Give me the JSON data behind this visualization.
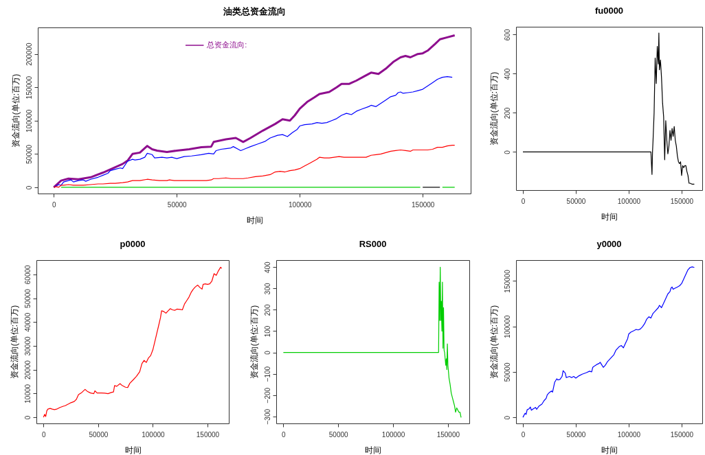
{
  "chart_data": [
    {
      "type": "line",
      "title": "油类总资金流向",
      "xlabel": "时间",
      "ylabel": "资金流向(单位:百万)",
      "xlim": [
        -6500,
        169500
      ],
      "ylim": [
        -9400,
        239800
      ],
      "xticks": [
        0,
        50000,
        100000,
        150000
      ],
      "yticks": [
        0,
        50000,
        100000,
        150000,
        200000
      ],
      "legend": "top",
      "series": [
        {
          "name": "总资金流向:",
          "color": "#8e0e8e",
          "x": [
            0,
            3000,
            6000,
            10000,
            15000,
            20000,
            25000,
            28000,
            30000,
            32000,
            35000,
            38000,
            40000,
            42000,
            46000,
            50000,
            55000,
            60000,
            64000,
            65000,
            70000,
            74000,
            77000,
            80000,
            85000,
            90000,
            93000,
            96000,
            98000,
            100000,
            103000,
            106000,
            108000,
            112000,
            115000,
            117000,
            120000,
            123000,
            126000,
            129000,
            132000,
            135000,
            138000,
            141000,
            143000,
            145000,
            148000,
            150000,
            152000,
            155000,
            157000,
            160000,
            163000
          ],
          "values": [
            0,
            10000,
            13000,
            12000,
            15000,
            22000,
            30000,
            35000,
            40000,
            50000,
            52000,
            62000,
            57000,
            55000,
            53000,
            55000,
            57000,
            60000,
            61000,
            68000,
            72000,
            74000,
            68000,
            74000,
            85000,
            95000,
            102000,
            100000,
            108000,
            118000,
            128000,
            135000,
            140000,
            143000,
            150000,
            155000,
            155000,
            160000,
            166000,
            172000,
            170000,
            178000,
            188000,
            195000,
            197000,
            195000,
            200000,
            201000,
            205000,
            215000,
            222000,
            225000,
            228000
          ]
        },
        {
          "color": "#0000ff",
          "x": [
            0,
            2000,
            3000,
            4000,
            6000,
            7000,
            8000,
            10000,
            12000,
            13000,
            15000,
            18000,
            20000,
            22000,
            23000,
            25000,
            27000,
            28000,
            30000,
            32000,
            33000,
            35000,
            37000,
            38000,
            40000,
            41000,
            44000,
            46000,
            48000,
            50000,
            53000,
            56000,
            60000,
            63000,
            65000,
            66000,
            68000,
            70000,
            72000,
            73000,
            75000,
            76000,
            78000,
            80000,
            83000,
            86000,
            88000,
            91000,
            93000,
            95000,
            97000,
            99000,
            100000,
            102000,
            105000,
            107000,
            109000,
            111000,
            113000,
            115000,
            117000,
            119000,
            121000,
            123000,
            125000,
            128000,
            129000,
            131000,
            133000,
            135000,
            137000,
            139000,
            140000,
            141000,
            142000,
            144000,
            146000,
            148000,
            150000,
            152000,
            154000,
            156000,
            158000,
            160000,
            162000
          ],
          "values": [
            0,
            4000,
            3000,
            8000,
            10000,
            11000,
            8000,
            10000,
            11000,
            9000,
            12000,
            15000,
            18000,
            21000,
            25000,
            27000,
            29000,
            28000,
            39000,
            42000,
            41000,
            42000,
            45000,
            51000,
            49000,
            44000,
            45000,
            44000,
            45000,
            43000,
            46000,
            47000,
            49000,
            51000,
            50000,
            55000,
            57000,
            58000,
            59000,
            61000,
            57000,
            55000,
            58000,
            61000,
            65000,
            69000,
            74000,
            78000,
            79000,
            76000,
            82000,
            87000,
            92000,
            94000,
            95000,
            97000,
            96000,
            97000,
            100000,
            103000,
            108000,
            111000,
            109000,
            114000,
            117000,
            121000,
            123000,
            121000,
            126000,
            131000,
            136000,
            138000,
            142000,
            143000,
            141000,
            142000,
            143000,
            145000,
            147000,
            152000,
            157000,
            162000,
            165000,
            166000,
            165000
          ]
        },
        {
          "color": "#ff0000",
          "x": [
            0,
            1000,
            2000,
            3000,
            4000,
            6000,
            8000,
            10000,
            12000,
            15000,
            18000,
            20000,
            23000,
            25000,
            28000,
            30000,
            32000,
            35000,
            38000,
            40000,
            43000,
            46000,
            47000,
            49000,
            53000,
            56000,
            59000,
            62000,
            64000,
            65000,
            67000,
            70000,
            72000,
            75000,
            77000,
            79000,
            82000,
            85000,
            88000,
            90000,
            92000,
            94000,
            96000,
            98000,
            100000,
            102000,
            104000,
            105000,
            107000,
            108000,
            110000,
            112000,
            114000,
            116000,
            118000,
            120000,
            122000,
            125000,
            127000,
            129000,
            131000,
            133000,
            135000,
            137000,
            139000,
            141000,
            143000,
            145000,
            146000,
            148000,
            150000,
            152000,
            154000,
            156000,
            158000,
            160000,
            162000,
            163000
          ],
          "values": [
            0,
            1000,
            0,
            3000,
            3000,
            4000,
            3000,
            3000,
            3000,
            4000,
            5000,
            5000,
            6000,
            6000,
            7000,
            8000,
            10000,
            10000,
            12000,
            11000,
            10000,
            10000,
            11000,
            10000,
            10000,
            10000,
            10000,
            10000,
            11000,
            13000,
            13000,
            14000,
            13000,
            13000,
            13000,
            14000,
            16000,
            17000,
            19000,
            23000,
            24000,
            23000,
            25000,
            26000,
            28000,
            32000,
            36000,
            38000,
            42000,
            45000,
            44000,
            44000,
            45000,
            46000,
            45000,
            45000,
            45000,
            45000,
            45000,
            48000,
            49000,
            50000,
            52000,
            54000,
            55000,
            56000,
            55000,
            54000,
            56000,
            56000,
            56000,
            56000,
            57000,
            60000,
            60000,
            62000,
            63000,
            63000
          ]
        },
        {
          "color": "#000000",
          "x": [
            150000,
            157000
          ],
          "values": [
            0,
            0
          ]
        },
        {
          "color": "#00cd00",
          "x": [
            3000,
            141500,
            149000,
            153000,
            158000,
            163000
          ],
          "values": [
            0,
            0,
            0,
            null,
            0,
            0
          ]
        }
      ]
    },
    {
      "type": "line",
      "title": "fu0000",
      "xlabel": "时间",
      "ylabel": "资金流向(单位:百万)",
      "xlim": [
        -6500,
        169500
      ],
      "ylim": [
        -195,
        640
      ],
      "xticks": [
        0,
        50000,
        100000,
        150000
      ],
      "yticks": [
        0,
        200,
        400,
        600
      ],
      "series": [
        {
          "color": "#000000",
          "x": [
            0,
            121000,
            121500,
            122000,
            122500,
            123000,
            124000,
            125000,
            126000,
            127000,
            128000,
            128500,
            129000,
            130000,
            131000,
            132000,
            133000,
            134000,
            135000,
            136000,
            137000,
            138000,
            139000,
            140000,
            141000,
            142000,
            143000,
            144000,
            145000,
            146000,
            147000,
            148000,
            149000,
            150000,
            151000,
            152000,
            153000,
            154000,
            155000,
            156000,
            157000,
            158000,
            160000,
            162000
          ],
          "values": [
            0,
            0,
            -60,
            -115,
            0,
            60,
            200,
            480,
            350,
            540,
            450,
            608,
            420,
            470,
            380,
            250,
            180,
            -40,
            160,
            60,
            -10,
            30,
            110,
            60,
            120,
            80,
            130,
            60,
            30,
            -20,
            -50,
            -60,
            -50,
            -120,
            -70,
            -80,
            -70,
            -70,
            -100,
            -120,
            -160,
            -160,
            -165,
            -165
          ]
        }
      ]
    },
    {
      "type": "line",
      "title": "p0000",
      "xlabel": "时间",
      "ylabel": "资金流向(单位:百万)",
      "xlim": [
        -6500,
        169500
      ],
      "ylim": [
        -2600,
        66000
      ],
      "xticks": [
        0,
        50000,
        100000,
        150000
      ],
      "yticks": [
        0,
        10000,
        20000,
        30000,
        40000,
        50000,
        60000
      ],
      "series": [
        {
          "color": "#ff0000",
          "x": [
            0,
            1000,
            2000,
            3000,
            4000,
            6000,
            8000,
            10000,
            12000,
            15000,
            18000,
            20000,
            23000,
            25000,
            28000,
            30000,
            32000,
            35000,
            38000,
            40000,
            43000,
            46000,
            47000,
            49000,
            53000,
            56000,
            59000,
            62000,
            64000,
            65000,
            67000,
            70000,
            72000,
            75000,
            77000,
            79000,
            82000,
            85000,
            88000,
            90000,
            92000,
            94000,
            96000,
            98000,
            100000,
            102000,
            104000,
            105000,
            107000,
            108000,
            110000,
            112000,
            114000,
            116000,
            118000,
            120000,
            122000,
            125000,
            127000,
            129000,
            131000,
            133000,
            135000,
            137000,
            139000,
            141000,
            143000,
            145000,
            146000,
            148000,
            150000,
            152000,
            154000,
            156000,
            158000,
            160000,
            162000,
            163000
          ],
          "values": [
            0,
            1200,
            300,
            2700,
            3400,
            3700,
            3400,
            3200,
            3400,
            4100,
            4600,
            4900,
            5600,
            6100,
            6600,
            7500,
            9500,
            10400,
            11700,
            10900,
            10200,
            9900,
            11100,
            10200,
            10200,
            10100,
            9900,
            10400,
            10600,
            13300,
            13000,
            14100,
            13300,
            12600,
            12500,
            14300,
            15700,
            17200,
            19100,
            22500,
            23900,
            23000,
            24900,
            25900,
            28300,
            32100,
            36000,
            37900,
            41800,
            44700,
            44400,
            43700,
            44700,
            45600,
            45100,
            44900,
            45400,
            45300,
            45100,
            47600,
            49000,
            50400,
            52400,
            53800,
            54800,
            55500,
            54500,
            53800,
            55800,
            56000,
            55800,
            56000,
            57200,
            60300,
            59600,
            61500,
            63000,
            62500
          ]
        }
      ]
    },
    {
      "type": "line",
      "title": "RS000",
      "xlabel": "时间",
      "ylabel": "资金流向(单位:百万)",
      "xlim": [
        -6500,
        169500
      ],
      "ylim": [
        -333,
        433
      ],
      "xticks": [
        0,
        50000,
        100000,
        150000
      ],
      "yticks": [
        -300,
        -200,
        -100,
        0,
        100,
        200,
        300,
        400
      ],
      "series": [
        {
          "color": "#00cd00",
          "x": [
            0,
            141500,
            142000,
            142500,
            143000,
            143500,
            144000,
            144500,
            145000,
            145500,
            146000,
            146500,
            147000,
            148000,
            148500,
            149000,
            149500,
            150000,
            151000,
            152000,
            153000,
            154000,
            155000,
            156000,
            157000,
            158000,
            159000,
            160000,
            161000,
            162000
          ],
          "values": [
            0,
            0,
            330,
            150,
            400,
            150,
            240,
            100,
            330,
            20,
            210,
            10,
            0,
            -60,
            -30,
            -80,
            40,
            -60,
            -120,
            -150,
            -190,
            -210,
            -230,
            -250,
            -280,
            -260,
            -270,
            -280,
            -280,
            -305
          ]
        }
      ]
    },
    {
      "type": "line",
      "title": "y0000",
      "xlabel": "时间",
      "ylabel": "资金流向(单位:百万)",
      "xlim": [
        -6500,
        169500
      ],
      "ylim": [
        -6700,
        173000
      ],
      "xticks": [
        0,
        50000,
        100000,
        150000
      ],
      "yticks": [
        0,
        50000,
        100000,
        150000
      ],
      "series": [
        {
          "color": "#0000ff",
          "x": [
            0,
            2000,
            3000,
            4000,
            6000,
            7000,
            8000,
            10000,
            12000,
            13000,
            15000,
            18000,
            20000,
            22000,
            23000,
            25000,
            27000,
            28000,
            30000,
            32000,
            33000,
            35000,
            37000,
            38000,
            40000,
            41000,
            44000,
            46000,
            48000,
            50000,
            53000,
            56000,
            60000,
            63000,
            65000,
            66000,
            68000,
            70000,
            72000,
            73000,
            75000,
            76000,
            78000,
            80000,
            83000,
            86000,
            88000,
            91000,
            93000,
            95000,
            97000,
            99000,
            100000,
            102000,
            105000,
            107000,
            109000,
            111000,
            113000,
            115000,
            117000,
            119000,
            121000,
            123000,
            125000,
            128000,
            129000,
            131000,
            133000,
            135000,
            137000,
            139000,
            140000,
            141000,
            142000,
            144000,
            146000,
            148000,
            150000,
            152000,
            154000,
            156000,
            158000,
            160000,
            162000
          ],
          "values": [
            0,
            4500,
            3300,
            8300,
            9600,
            11400,
            7800,
            9600,
            10900,
            8800,
            12100,
            14600,
            18400,
            21000,
            24700,
            27300,
            29000,
            27800,
            38600,
            42400,
            41200,
            41700,
            45000,
            51300,
            48700,
            43700,
            45000,
            43700,
            45000,
            43200,
            45700,
            47500,
            49200,
            50800,
            50000,
            55000,
            56800,
            58300,
            59300,
            60600,
            56800,
            55000,
            57600,
            61400,
            65100,
            68900,
            74000,
            77800,
            79000,
            76500,
            81600,
            86600,
            91700,
            93700,
            95400,
            96700,
            96200,
            97200,
            99700,
            103000,
            108000,
            110600,
            109300,
            114400,
            116900,
            120700,
            123200,
            120700,
            125700,
            130800,
            135800,
            138400,
            142200,
            143400,
            140900,
            142200,
            143400,
            144700,
            147200,
            152300,
            157300,
            162400,
            164900,
            165600,
            164900
          ]
        }
      ]
    }
  ]
}
